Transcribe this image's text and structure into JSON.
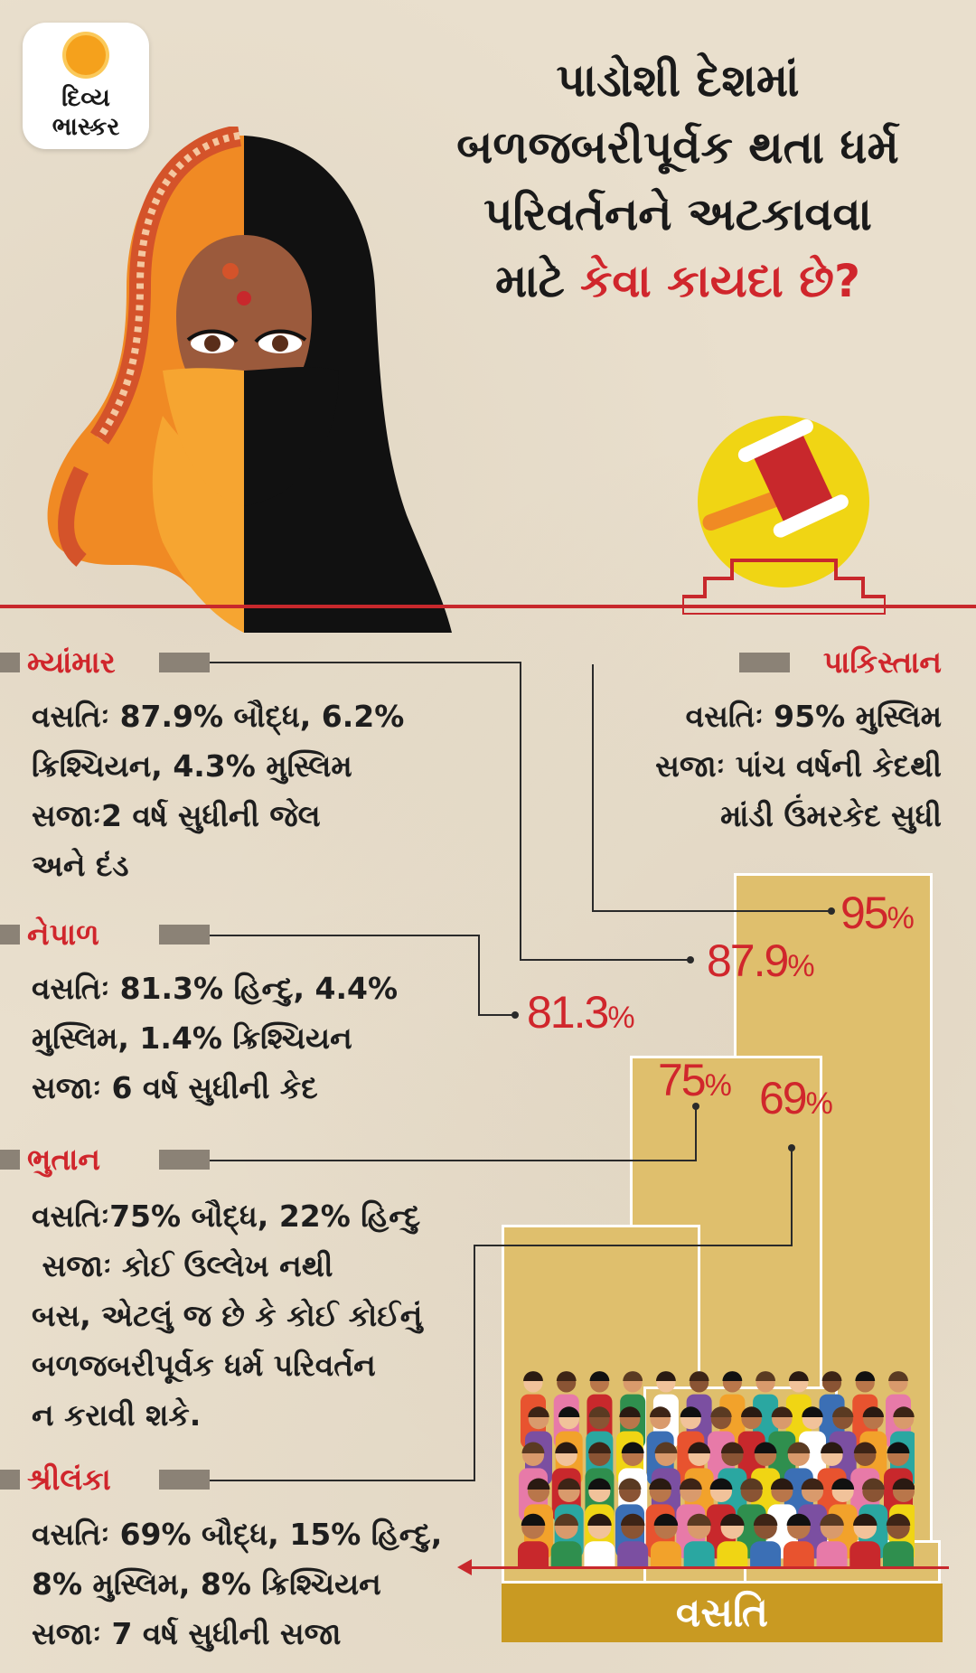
{
  "logo": {
    "line1": "દિવ્ય",
    "line2": "ભાસ્કર"
  },
  "title": {
    "line1": "પાડોશી દેશમાં",
    "line2": "બળજબરીપૂર્વક થતા ધર્મ",
    "line3": "પરિવર્તનને અટકાવવા",
    "line4_plain": "માટે ",
    "line4_red": "કેવા કાયદા છે?"
  },
  "sections": {
    "myanmar": {
      "name": "મ્યાંમાર",
      "lines": [
        "વસતિઃ 87.9% બૌદ્ધ, 6.2%",
        "ક્રિશ્ચિયન, 4.3% મુસ્લિમ",
        "સજાઃ2 વર્ષ સુધીની જેલ",
        "અને દંડ"
      ]
    },
    "nepal": {
      "name": "નેપાળ",
      "lines": [
        "વસતિઃ 81.3% હિન્દુ, 4.4%",
        "મુસ્લિમ, 1.4% ક્રિશ્ચિયન",
        "સજાઃ 6 વર્ષ સુધીની કેદ"
      ]
    },
    "bhutan": {
      "name": "ભુતાન",
      "lines": [
        "વસતિઃ75% બૌદ્ધ, 22% હિન્દુ",
        " સજાઃ કોઈ ઉલ્લેખ નથી",
        "બસ, એટલું જ છે કે કોઈ કોઈનું",
        "બળજબરીપૂર્વક ધર્મ પરિવર્તન",
        "ન કરાવી શકે."
      ]
    },
    "srilanka": {
      "name": "શ્રીલંકા",
      "lines": [
        "વસતિઃ 69% બૌદ્ધ, 15% હિન્દુ,",
        "8% મુસ્લિમ, 8% ક્રિશ્ચિયન",
        "સજાઃ 7 વર્ષ સુધીની સજા"
      ]
    },
    "pakistan": {
      "name": "પાકિસ્તાન",
      "lines": [
        "વસતિઃ 95% મુસ્લિમ",
        "સજાઃ પાંચ વર્ષની કેદથી",
        "માંડી ઉંમરકેદ સુધી"
      ]
    }
  },
  "chart_data": {
    "type": "bar",
    "categories": [
      "પાકિસ્તાન",
      "મ્યાંમાર",
      "નેપાળ",
      "ભુતાન",
      "શ્રીલંકા"
    ],
    "values": [
      95,
      87.9,
      81.3,
      75,
      69
    ],
    "labels": [
      "95",
      "87.9",
      "81.3",
      "75",
      "69"
    ],
    "unit": "%",
    "xlabel": "વસતિ"
  },
  "colors": {
    "accent_red": "#d0262c",
    "bar_fill": "#dfbf6d",
    "base_gold": "#c99a22",
    "bar_gray": "#8b8276"
  }
}
